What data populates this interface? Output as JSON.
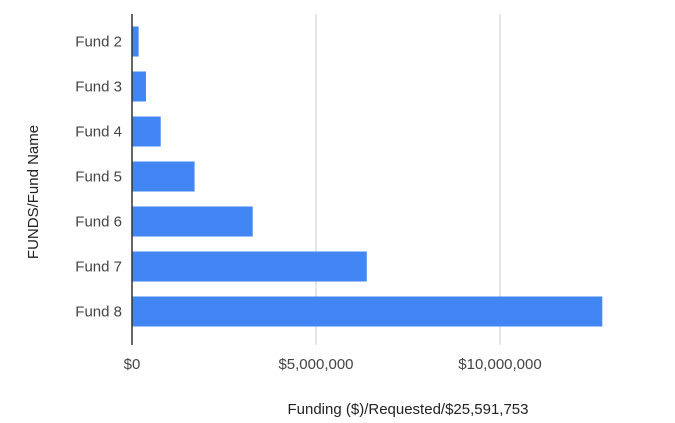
{
  "chart_data": {
    "type": "bar",
    "orientation": "horizontal",
    "categories": [
      "Fund 2",
      "Fund 3",
      "Fund 4",
      "Fund 5",
      "Fund 6",
      "Fund 7",
      "Fund 8"
    ],
    "series": [
      {
        "values": [
          180000,
          380000,
          780000,
          1700000,
          3280000,
          6380000,
          12780000
        ]
      }
    ],
    "xlabel": "Funding ($)/Requested/$25,591,753",
    "ylabel": "FUNDS/Fund Name",
    "xlim": [
      0,
      15000000
    ],
    "x_ticks": [
      {
        "value": 0,
        "label": "$0"
      },
      {
        "value": 5000000,
        "label": "$5,000,000"
      },
      {
        "value": 10000000,
        "label": "$10,000,000"
      }
    ],
    "grid": true,
    "legend": "none",
    "colors": {
      "bar": "#4285f4",
      "grid": "#cccccc",
      "axis": "#333333"
    }
  }
}
